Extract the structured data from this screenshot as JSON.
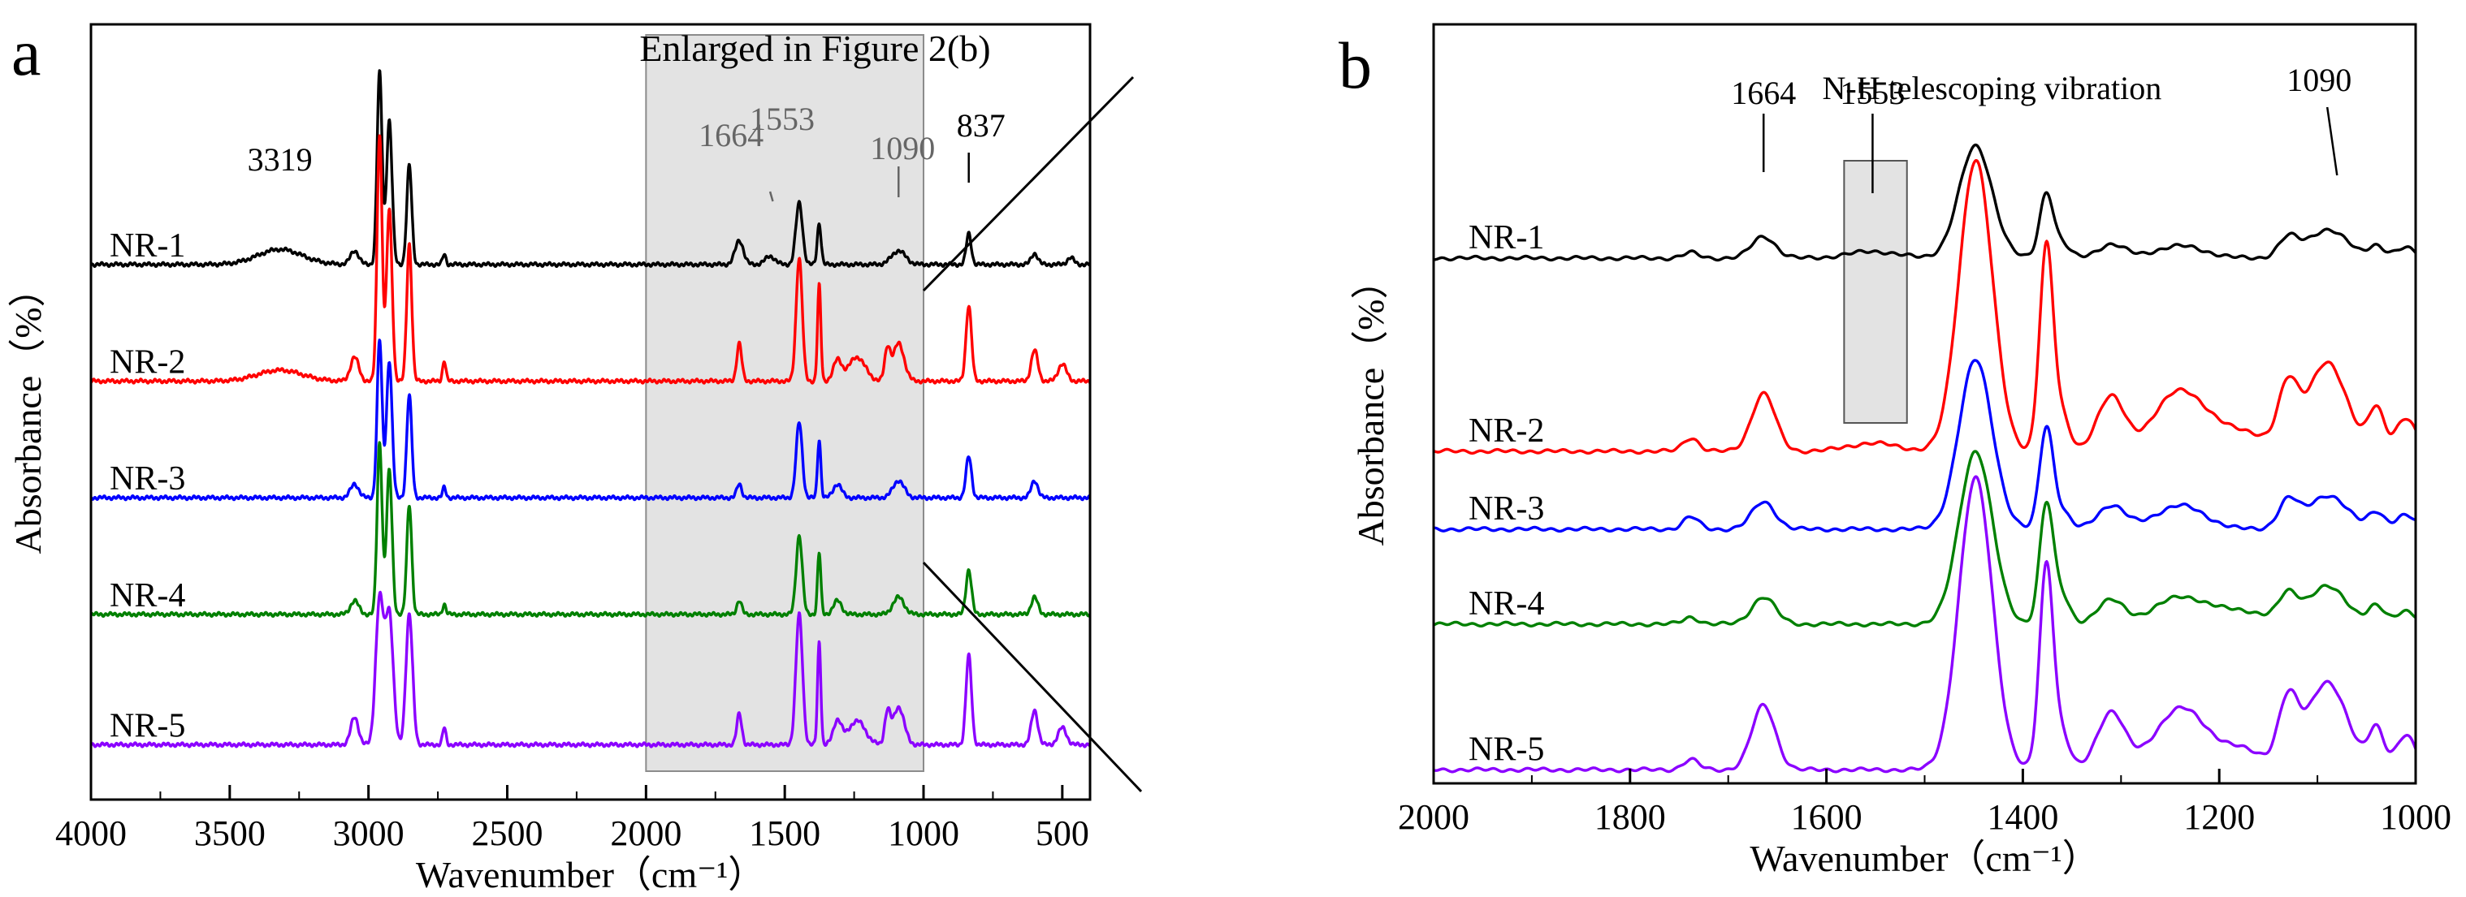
{
  "chart_data": [
    {
      "panel": "a",
      "type": "line",
      "title": "",
      "xlabel": "Wavenumber（cm⁻¹）",
      "ylabel": "Absorbance（%）",
      "xlim": [
        4000,
        400
      ],
      "xticks": [
        4000,
        3500,
        3000,
        2500,
        2000,
        1500,
        1000,
        500
      ],
      "y_ticks_visible": false,
      "highlight": {
        "x_range": [
          2000,
          1000
        ],
        "label": "Enlarged in Figure 2(b)"
      },
      "series": [
        {
          "name": "NR-1",
          "color": "#000000",
          "baseline": 0.78,
          "peaks": [
            [
              3319,
              0.022,
              80
            ],
            [
              3050,
              0.02,
              15
            ],
            [
              2960,
              0.28,
              9
            ],
            [
              2925,
              0.21,
              10
            ],
            [
              2853,
              0.145,
              9
            ],
            [
              2727,
              0.015,
              6
            ],
            [
              1664,
              0.035,
              15
            ],
            [
              1553,
              0.012,
              18
            ],
            [
              1448,
              0.09,
              12
            ],
            [
              1376,
              0.06,
              7
            ],
            [
              1090,
              0.02,
              25
            ],
            [
              837,
              0.045,
              9
            ],
            [
              600,
              0.016,
              12
            ],
            [
              470,
              0.01,
              12
            ]
          ]
        },
        {
          "name": "NR-2",
          "color": "#ff0000",
          "baseline": 0.61,
          "peaks": [
            [
              3319,
              0.016,
              80
            ],
            [
              3050,
              0.035,
              15
            ],
            [
              2960,
              0.36,
              9
            ],
            [
              2925,
              0.25,
              10
            ],
            [
              2853,
              0.2,
              9
            ],
            [
              2727,
              0.03,
              6
            ],
            [
              1664,
              0.055,
              9
            ],
            [
              1448,
              0.18,
              11
            ],
            [
              1376,
              0.14,
              6
            ],
            [
              1310,
              0.03,
              15
            ],
            [
              1240,
              0.035,
              30
            ],
            [
              1130,
              0.045,
              10
            ],
            [
              1090,
              0.055,
              20
            ],
            [
              837,
              0.11,
              10
            ],
            [
              600,
              0.045,
              12
            ],
            [
              500,
              0.025,
              15
            ]
          ]
        },
        {
          "name": "NR-3",
          "color": "#0000ff",
          "baseline": 0.44,
          "peaks": [
            [
              3050,
              0.02,
              15
            ],
            [
              2960,
              0.23,
              9
            ],
            [
              2925,
              0.2,
              10
            ],
            [
              2853,
              0.15,
              9
            ],
            [
              2727,
              0.015,
              6
            ],
            [
              1664,
              0.02,
              9
            ],
            [
              1448,
              0.11,
              11
            ],
            [
              1376,
              0.085,
              6
            ],
            [
              1310,
              0.02,
              15
            ],
            [
              1090,
              0.025,
              20
            ],
            [
              837,
              0.06,
              10
            ],
            [
              600,
              0.025,
              12
            ]
          ]
        },
        {
          "name": "NR-4",
          "color": "#008000",
          "baseline": 0.27,
          "peaks": [
            [
              3050,
              0.02,
              15
            ],
            [
              2960,
              0.25,
              9
            ],
            [
              2925,
              0.21,
              10
            ],
            [
              2853,
              0.16,
              9
            ],
            [
              2727,
              0.015,
              6
            ],
            [
              1664,
              0.02,
              9
            ],
            [
              1448,
              0.115,
              11
            ],
            [
              1376,
              0.09,
              6
            ],
            [
              1310,
              0.02,
              15
            ],
            [
              1090,
              0.025,
              20
            ],
            [
              837,
              0.065,
              10
            ],
            [
              600,
              0.025,
              12
            ]
          ]
        },
        {
          "name": "NR-5",
          "color": "#8b00ff",
          "baseline": 0.08,
          "peaks": [
            [
              3050,
              0.04,
              14
            ],
            [
              2960,
              0.21,
              14
            ],
            [
              2925,
              0.19,
              14
            ],
            [
              2853,
              0.19,
              12
            ],
            [
              2727,
              0.025,
              6
            ],
            [
              1664,
              0.045,
              9
            ],
            [
              1448,
              0.19,
              12
            ],
            [
              1376,
              0.15,
              6
            ],
            [
              1310,
              0.035,
              15
            ],
            [
              1240,
              0.035,
              30
            ],
            [
              1130,
              0.045,
              10
            ],
            [
              1090,
              0.055,
              20
            ],
            [
              837,
              0.13,
              10
            ],
            [
              600,
              0.05,
              12
            ],
            [
              500,
              0.025,
              15
            ]
          ]
        }
      ],
      "annotations": [
        {
          "text": "3319",
          "x": 3319,
          "style": "plain"
        },
        {
          "text": "1664",
          "x": 1664,
          "style": "grey"
        },
        {
          "text": "1553",
          "x": 1553,
          "style": "grey"
        },
        {
          "text": "1090",
          "x": 1090,
          "style": "grey"
        },
        {
          "text": "837",
          "x": 837,
          "style": "plain"
        }
      ]
    },
    {
      "panel": "b",
      "type": "line",
      "title": "",
      "xlabel": "Wavenumber（cm⁻¹）",
      "ylabel": "Absorbance（%）",
      "xlim": [
        2000,
        1000
      ],
      "xticks": [
        2000,
        1800,
        1600,
        1400,
        1200,
        1000
      ],
      "y_ticks_visible": false,
      "highlight": {
        "x_range": [
          1582,
          1518
        ],
        "label": ""
      },
      "series": [
        {
          "name": "NR-1",
          "color": "#000000",
          "baseline": 0.775,
          "peaks": [
            [
              1738,
              0.008,
              8
            ],
            [
              1664,
              0.032,
              12
            ],
            [
              1553,
              0.01,
              25
            ],
            [
              1448,
              0.165,
              17
            ],
            [
              1376,
              0.095,
              7
            ],
            [
              1360,
              0.02,
              8
            ],
            [
              1310,
              0.02,
              14
            ],
            [
              1240,
              0.018,
              25
            ],
            [
              1130,
              0.028,
              10
            ],
            [
              1090,
              0.042,
              20
            ],
            [
              1040,
              0.018,
              8
            ],
            [
              1010,
              0.015,
              10
            ]
          ]
        },
        {
          "name": "NR-2",
          "color": "#ff0000",
          "baseline": 0.49,
          "peaks": [
            [
              1738,
              0.02,
              8
            ],
            [
              1664,
              0.085,
              12
            ],
            [
              1553,
              0.012,
              25
            ],
            [
              1448,
              0.43,
              17
            ],
            [
              1376,
              0.3,
              7
            ],
            [
              1360,
              0.05,
              8
            ],
            [
              1310,
              0.08,
              14
            ],
            [
              1240,
              0.09,
              25
            ],
            [
              1180,
              0.03,
              25
            ],
            [
              1130,
              0.09,
              10
            ],
            [
              1090,
              0.13,
              20
            ],
            [
              1040,
              0.06,
              8
            ],
            [
              1010,
              0.05,
              10
            ]
          ]
        },
        {
          "name": "NR-3",
          "color": "#0000ff",
          "baseline": 0.375,
          "peaks": [
            [
              1738,
              0.018,
              8
            ],
            [
              1664,
              0.04,
              12
            ],
            [
              1448,
              0.25,
              17
            ],
            [
              1376,
              0.15,
              7
            ],
            [
              1360,
              0.025,
              8
            ],
            [
              1310,
              0.035,
              14
            ],
            [
              1240,
              0.035,
              25
            ],
            [
              1130,
              0.04,
              10
            ],
            [
              1090,
              0.05,
              20
            ],
            [
              1040,
              0.025,
              8
            ],
            [
              1010,
              0.02,
              10
            ]
          ]
        },
        {
          "name": "NR-4",
          "color": "#008000",
          "baseline": 0.235,
          "peaks": [
            [
              1738,
              0.01,
              8
            ],
            [
              1664,
              0.04,
              12
            ],
            [
              1448,
              0.255,
              17
            ],
            [
              1376,
              0.175,
              7
            ],
            [
              1360,
              0.04,
              8
            ],
            [
              1310,
              0.035,
              14
            ],
            [
              1240,
              0.04,
              25
            ],
            [
              1180,
              0.02,
              25
            ],
            [
              1130,
              0.04,
              10
            ],
            [
              1090,
              0.055,
              20
            ],
            [
              1040,
              0.025,
              8
            ],
            [
              1010,
              0.02,
              10
            ]
          ]
        },
        {
          "name": "NR-5",
          "color": "#8b00ff",
          "baseline": 0.02,
          "peaks": [
            [
              1738,
              0.015,
              8
            ],
            [
              1664,
              0.095,
              12
            ],
            [
              1448,
              0.43,
              17
            ],
            [
              1376,
              0.3,
              7
            ],
            [
              1360,
              0.05,
              8
            ],
            [
              1310,
              0.085,
              14
            ],
            [
              1240,
              0.09,
              25
            ],
            [
              1180,
              0.03,
              25
            ],
            [
              1130,
              0.095,
              10
            ],
            [
              1090,
              0.13,
              20
            ],
            [
              1040,
              0.06,
              8
            ],
            [
              1010,
              0.05,
              10
            ]
          ]
        }
      ],
      "annotations": [
        {
          "text": "1664",
          "x": 1664,
          "style": "plain"
        },
        {
          "text": "1553",
          "x": 1553,
          "style": "plain"
        },
        {
          "text": "N-H telescoping vibration",
          "x": 1448,
          "style": "plain"
        },
        {
          "text": "1090",
          "x": 1090,
          "style": "plain"
        }
      ]
    }
  ]
}
